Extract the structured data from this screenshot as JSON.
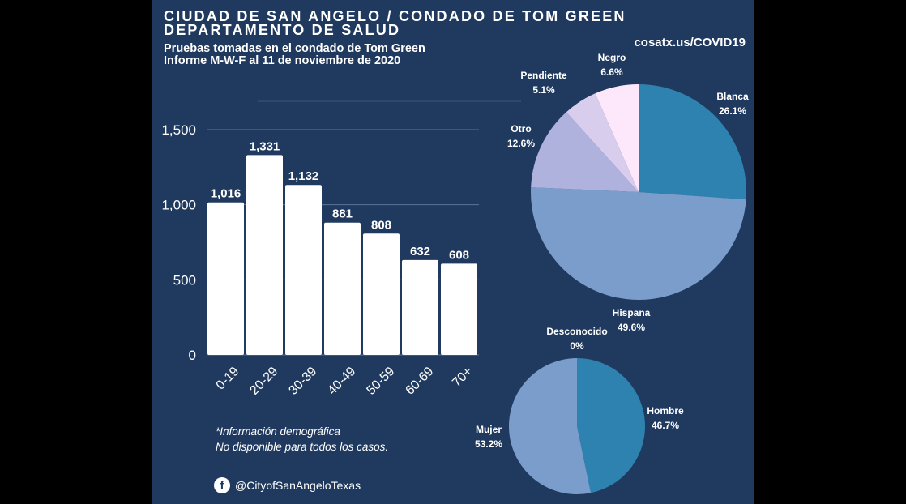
{
  "header": {
    "title_line1": "CIUDAD DE SAN ANGELO / CONDADO DE TOM GREEN",
    "title_line2": "DEPARTAMENTO DE SALUD",
    "subtitle_line1": "Pruebas tomadas en el condado de Tom Green",
    "subtitle_line2": "Informe M-W-F al 11 de noviembre de 2020",
    "website": "cosatx.us/COVID19"
  },
  "footer": {
    "note_line1": "*Información demográfica",
    "note_line2": "No disponible para todos los casos.",
    "social_handle": "@CityofSanAngeloTexas",
    "social_icon": "facebook-icon"
  },
  "chart_data": [
    {
      "type": "bar",
      "categories": [
        "0-19",
        "20-29",
        "30-39",
        "40-49",
        "50-59",
        "60-69",
        "70+"
      ],
      "values": [
        1016,
        1331,
        1132,
        881,
        808,
        632,
        608
      ],
      "value_labels": [
        "1,016",
        "1,331",
        "1,132",
        "881",
        "808",
        "632",
        "608"
      ],
      "ylim": [
        0,
        1500
      ],
      "yticks": [
        0,
        500,
        1000,
        1500
      ],
      "ytick_labels": [
        "0",
        "500",
        "1,000",
        "1,500"
      ],
      "grid": true,
      "bar_color": "#ffffff"
    },
    {
      "type": "pie",
      "slices": [
        {
          "name": "Blanca",
          "value_label": "26.1%",
          "value": 26.1,
          "color": "#2e82b0"
        },
        {
          "name": "Hispana",
          "value_label": "49.6%",
          "value": 49.6,
          "color": "#7b9dcc"
        },
        {
          "name": "Otro",
          "value_label": "12.6%",
          "value": 12.6,
          "color": "#aeb2dd"
        },
        {
          "name": "Pendiente",
          "value_label": "5.1%",
          "value": 5.1,
          "color": "#d9cdee"
        },
        {
          "name": "Negro",
          "value_label": "6.6%",
          "value": 6.6,
          "color": "#fde8fb"
        }
      ]
    },
    {
      "type": "pie",
      "slices": [
        {
          "name": "Hombre",
          "value_label": "46.7%",
          "value": 46.7,
          "color": "#2e82b0"
        },
        {
          "name": "Mujer",
          "value_label": "53.2%",
          "value": 53.2,
          "color": "#7b9dcc"
        },
        {
          "name": "Desconocido",
          "value_label": "0%",
          "value": 0,
          "color": "#aeb2dd"
        }
      ]
    }
  ]
}
